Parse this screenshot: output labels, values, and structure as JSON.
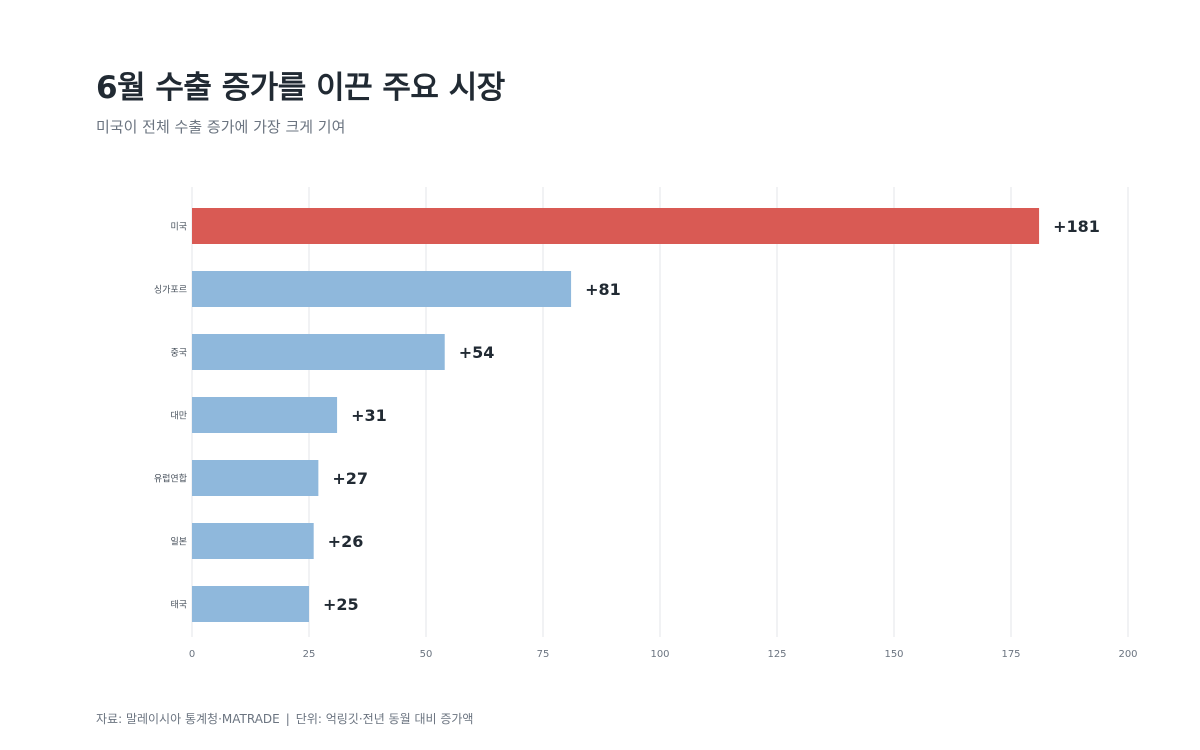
{
  "header": {
    "title": "6월 수출 증가를 이끈 주요 시장",
    "subtitle": "미국이 전체 수출 증가에 가장 크게 기여"
  },
  "footer": {
    "source": "자료: 말레이시아 통계청·MATRADE",
    "unit": "단위: 억링깃·전년 동월 대비 증가액"
  },
  "chart_data": {
    "type": "bar",
    "orientation": "horizontal",
    "categories": [
      "미국",
      "싱가포르",
      "중국",
      "대만",
      "유럽연합",
      "일본",
      "태국"
    ],
    "values": [
      181,
      81,
      54,
      31,
      27,
      26,
      25
    ],
    "value_labels": [
      "+181",
      "+81",
      "+54",
      "+31",
      "+27",
      "+26",
      "+25"
    ],
    "xlim": [
      0,
      200
    ],
    "xticks": [
      0,
      25,
      50,
      75,
      100,
      125,
      150,
      175,
      200
    ],
    "grid": "vertical",
    "colors": {
      "highlight": "#d95a54",
      "default": "#8fb8dc",
      "grid": "#e3e6ea",
      "tick_text": "#6b7480",
      "value_text": "#212a33"
    }
  }
}
